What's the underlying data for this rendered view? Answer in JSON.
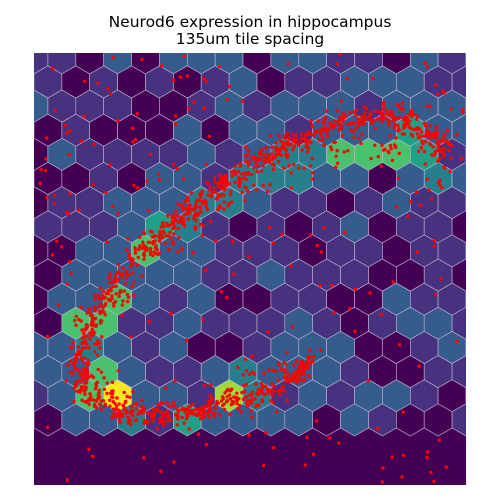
{
  "chart_data": {
    "type": "heatmap",
    "subtype": "hexbin",
    "title": "Neurod6 expression in hippocampus",
    "subtitle": "135um tile spacing",
    "gene": "Neurod6",
    "tile_spacing": "135um",
    "axes_visible": false,
    "colormap": [
      "#440154",
      "#46327e",
      "#365c8d",
      "#277f8e",
      "#1fa187",
      "#4ac16d",
      "#a0da39",
      "#fde725"
    ],
    "tile_edge_color": "#c8b9d6",
    "point_color": "#ff0000",
    "value_range": [
      0,
      1
    ],
    "hex_grid": {
      "columns": 16,
      "rows": 14
    },
    "tile_values_note": "normalized expression per hexagonal tile, read from colour",
    "tissue_curve": [
      [
        0.13,
        0.8
      ],
      [
        0.1,
        0.72
      ],
      [
        0.14,
        0.6
      ],
      [
        0.21,
        0.5
      ],
      [
        0.29,
        0.43
      ],
      [
        0.36,
        0.36
      ],
      [
        0.44,
        0.3
      ],
      [
        0.53,
        0.24
      ],
      [
        0.62,
        0.2
      ],
      [
        0.71,
        0.16
      ],
      [
        0.82,
        0.14
      ],
      [
        0.9,
        0.17
      ],
      [
        0.96,
        0.23
      ]
    ],
    "tissue_curve_lower": [
      [
        0.13,
        0.8
      ],
      [
        0.22,
        0.84
      ],
      [
        0.32,
        0.84
      ],
      [
        0.41,
        0.82
      ],
      [
        0.51,
        0.8
      ],
      [
        0.6,
        0.75
      ],
      [
        0.64,
        0.71
      ]
    ],
    "hot_tiles": [
      {
        "u": 0.19,
        "v": 0.8,
        "value": 1.0
      },
      {
        "u": 0.13,
        "v": 0.76,
        "value": 0.75
      },
      {
        "u": 0.13,
        "v": 0.69,
        "value": 0.45
      },
      {
        "u": 0.13,
        "v": 0.62,
        "value": 0.65
      },
      {
        "u": 0.19,
        "v": 0.57,
        "value": 0.65
      },
      {
        "u": 0.25,
        "v": 0.45,
        "value": 0.7
      },
      {
        "u": 0.31,
        "v": 0.42,
        "value": 0.6
      },
      {
        "u": 0.37,
        "v": 0.38,
        "value": 0.45
      },
      {
        "u": 0.44,
        "v": 0.34,
        "value": 0.45
      },
      {
        "u": 0.5,
        "v": 0.3,
        "value": 0.45
      },
      {
        "u": 0.56,
        "v": 0.26,
        "value": 0.45
      },
      {
        "u": 0.63,
        "v": 0.26,
        "value": 0.45
      },
      {
        "u": 0.69,
        "v": 0.22,
        "value": 0.65
      },
      {
        "u": 0.75,
        "v": 0.19,
        "value": 0.3
      },
      {
        "u": 0.81,
        "v": 0.22,
        "value": 0.75
      },
      {
        "u": 0.87,
        "v": 0.19,
        "value": 0.55
      },
      {
        "u": 0.93,
        "v": 0.22,
        "value": 0.55
      },
      {
        "u": 0.93,
        "v": 0.3,
        "value": 0.4
      },
      {
        "u": 0.25,
        "v": 0.84,
        "value": 0.4
      },
      {
        "u": 0.31,
        "v": 0.8,
        "value": 0.3
      },
      {
        "u": 0.37,
        "v": 0.84,
        "value": 0.5
      },
      {
        "u": 0.44,
        "v": 0.8,
        "value": 0.85
      },
      {
        "u": 0.5,
        "v": 0.76,
        "value": 0.45
      },
      {
        "u": 0.56,
        "v": 0.73,
        "value": 0.35
      }
    ]
  }
}
